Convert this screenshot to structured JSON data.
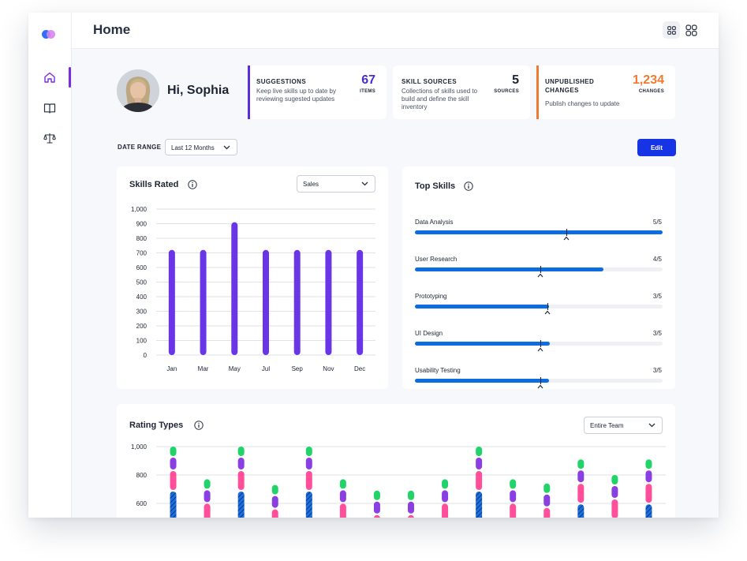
{
  "header": {
    "title": "Home"
  },
  "sidebar": {
    "items": [
      {
        "name": "home",
        "icon": "home-icon",
        "active": true
      },
      {
        "name": "library",
        "icon": "book-icon",
        "active": false
      },
      {
        "name": "compare",
        "icon": "scale-icon",
        "active": false
      }
    ]
  },
  "profile": {
    "greeting": "Hi, Sophia",
    "avatar": "avatar-photo"
  },
  "stats": [
    {
      "label": "SUGGESTIONS",
      "desc": [
        "Keep live skills up to date by",
        "reviewing sugested updates"
      ],
      "value": "67",
      "unit": "ITEMS",
      "color": "#4b2bd6"
    },
    {
      "label": "SKILL SOURCES",
      "desc": [
        "Collections of skills used to",
        "build and define the skill",
        "inventory"
      ],
      "value": "5",
      "unit": "SOURCES",
      "color": "#1c2433"
    },
    {
      "label": [
        "UNPUBLISHED",
        "CHANGES"
      ],
      "desc": [
        "Publish changes to update"
      ],
      "value": "1,234",
      "unit": "CHANGES",
      "color": "#f07a2f"
    }
  ],
  "date_range": {
    "label": "DATE RANGE",
    "value": "Last 12 Months"
  },
  "edit_button": "Edit",
  "skills_rated": {
    "title": "Skills Rated",
    "filter": "Sales",
    "chart_data": {
      "type": "bar",
      "title": "Skills Rated",
      "categories": [
        "Jan",
        "Mar",
        "May",
        "Jul",
        "Sep",
        "Nov",
        "Dec"
      ],
      "values": [
        720,
        720,
        910,
        720,
        720,
        720,
        720
      ],
      "yticks": [
        "1,000",
        "900",
        "800",
        "700",
        "600",
        "500",
        "400",
        "300",
        "200",
        "100",
        "0"
      ],
      "ylim": [
        0,
        1000
      ],
      "grid": true,
      "color": "#6a35e6"
    }
  },
  "top_skills": {
    "title": "Top Skills",
    "items": [
      {
        "name": "Data Analysis",
        "score": "5/5",
        "value": 1.0,
        "marker": 0.61
      },
      {
        "name": "User Research",
        "score": "4/5",
        "value": 0.76,
        "marker": 0.505
      },
      {
        "name": "Prototyping",
        "score": "3/5",
        "value": 0.54,
        "marker": 0.535
      },
      {
        "name": "UI Design",
        "score": "3/5",
        "value": 0.545,
        "marker": 0.505
      },
      {
        "name": "Usability Testing",
        "score": "3/5",
        "value": 0.54,
        "marker": 0.505
      }
    ]
  },
  "rating_types": {
    "title": "Rating Types",
    "filter": "Entire Team",
    "yticks": [
      "1,000",
      "800",
      "600"
    ],
    "colors": {
      "green": "#22d36a",
      "purple": "#8a3fe3",
      "pink": "#ff4f9a",
      "blue": "#1b6fe0"
    },
    "chart_data": {
      "type": "bar",
      "title": "Rating Types",
      "ylim": [
        0,
        1000
      ],
      "stack_tops": [
        1000,
        770,
        1000,
        730,
        1000,
        770,
        690,
        690,
        770,
        1000,
        770,
        740,
        910,
        800,
        910
      ]
    }
  }
}
